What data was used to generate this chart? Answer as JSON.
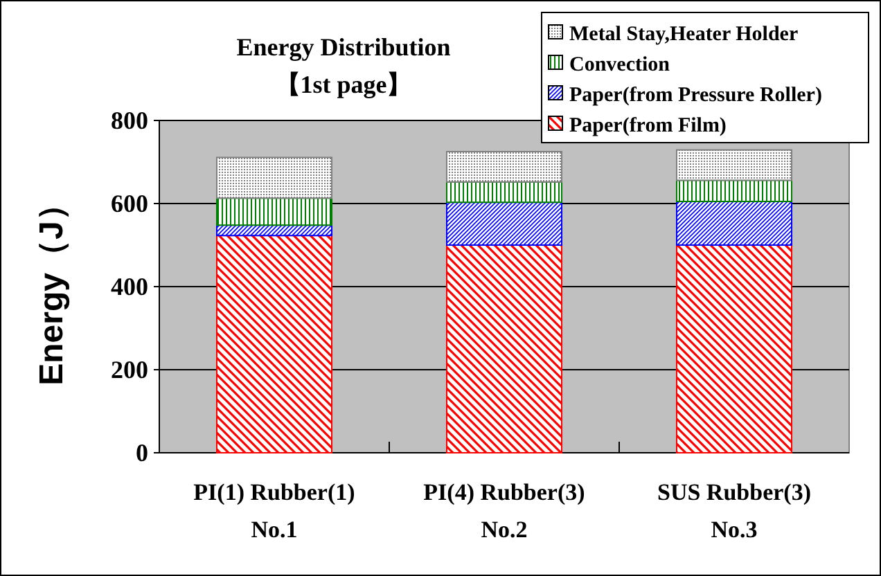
{
  "chart_data": {
    "type": "bar",
    "stacked": true,
    "title": "Energy Distribution\n【1st  page】",
    "ylabel": "Energy（J）",
    "categories": [
      "PI(1) Rubber(1)\nNo.1",
      "PI(4) Rubber(3)\nNo.2",
      "SUS Rubber(3)\nNo.3"
    ],
    "ylim": [
      0,
      800
    ],
    "yticks": [
      0,
      200,
      400,
      600,
      800
    ],
    "grid": "y",
    "legend": "top right",
    "series": [
      {
        "name": "Paper(from Film)",
        "color": "#ff0000",
        "values": [
          523,
          500,
          500
        ]
      },
      {
        "name": "Paper(from Pressure Roller)",
        "color": "#0000ff",
        "values": [
          25,
          103,
          105
        ]
      },
      {
        "name": "Convection",
        "color": "#008000",
        "values": [
          65,
          49,
          51
        ]
      },
      {
        "name": "Metal Stay,Heater Holder",
        "color": "#808080",
        "values": [
          98,
          73,
          73
        ]
      }
    ]
  }
}
